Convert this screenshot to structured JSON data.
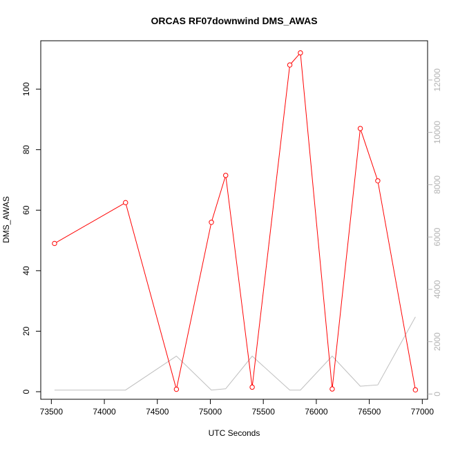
{
  "chart_data": {
    "type": "line",
    "title": "ORCAS RF07downwind DMS_AWAS",
    "xlabel": "UTC Seconds",
    "ylabel": "DMS_AWAS",
    "xlim": [
      73400,
      77050
    ],
    "ylim": [
      -2.5,
      116
    ],
    "y2lim": [
      -200,
      13500
    ],
    "xticks": [
      73500,
      74000,
      74500,
      75000,
      75500,
      76000,
      76500,
      77000
    ],
    "yticks": [
      0,
      20,
      40,
      60,
      80,
      100
    ],
    "y2ticks": [
      0,
      2000,
      4000,
      6000,
      8000,
      10000,
      12000
    ],
    "colors": {
      "primary": "#ff0000",
      "secondary": "#bebebe",
      "axis": "#000000",
      "right_axis": "#b3b3b3"
    },
    "series": [
      {
        "axis": "left",
        "marker": "circle",
        "x": [
          73530,
          74200,
          74680,
          75010,
          75145,
          75395,
          75750,
          75850,
          76150,
          76415,
          76580,
          76935
        ],
        "y": [
          49,
          62.5,
          0.8,
          56,
          71.5,
          1.5,
          108,
          112,
          0.9,
          87,
          69.7,
          0.6
        ]
      },
      {
        "axis": "right",
        "marker": "none",
        "x": [
          73530,
          74200,
          74680,
          75010,
          75145,
          75395,
          75750,
          75850,
          76150,
          76415,
          76580,
          76935
        ],
        "y": [
          150,
          150,
          1450,
          150,
          200,
          1450,
          150,
          150,
          1450,
          300,
          350,
          2950
        ]
      }
    ]
  }
}
